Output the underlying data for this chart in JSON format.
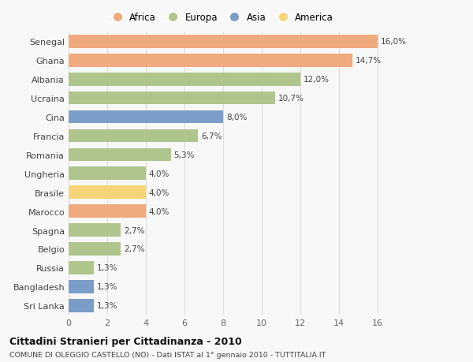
{
  "countries": [
    "Sri Lanka",
    "Bangladesh",
    "Russia",
    "Belgio",
    "Spagna",
    "Marocco",
    "Brasile",
    "Ungheria",
    "Romania",
    "Francia",
    "Cina",
    "Ucraina",
    "Albania",
    "Ghana",
    "Senegal"
  ],
  "values": [
    1.3,
    1.3,
    1.3,
    2.7,
    2.7,
    4.0,
    4.0,
    4.0,
    5.3,
    6.7,
    8.0,
    10.7,
    12.0,
    14.7,
    16.0
  ],
  "labels": [
    "1,3%",
    "1,3%",
    "1,3%",
    "2,7%",
    "2,7%",
    "4,0%",
    "4,0%",
    "4,0%",
    "5,3%",
    "6,7%",
    "8,0%",
    "10,7%",
    "12,0%",
    "14,7%",
    "16,0%"
  ],
  "colors": [
    "#7b9dc8",
    "#7b9dc8",
    "#b0c48e",
    "#b0c48e",
    "#b0c48e",
    "#f0aa80",
    "#f5d47a",
    "#b0c48e",
    "#b0c48e",
    "#b0c48e",
    "#7b9dc8",
    "#b0c48e",
    "#b0c48e",
    "#f0aa80",
    "#f0aa80"
  ],
  "legend_labels": [
    "Africa",
    "Europa",
    "Asia",
    "America"
  ],
  "legend_colors": [
    "#f0aa80",
    "#b0c48e",
    "#7b9dc8",
    "#f5d47a"
  ],
  "title": "Cittadini Stranieri per Cittadinanza - 2010",
  "subtitle": "COMUNE DI OLEGGIO CASTELLO (NO) - Dati ISTAT al 1° gennaio 2010 - TUTTITALIA.IT",
  "xlim": [
    0,
    17.5
  ],
  "xticks": [
    0,
    2,
    4,
    6,
    8,
    10,
    12,
    14,
    16
  ],
  "bg_color": "#f8f8f8",
  "grid_color": "#dddddd",
  "bar_height": 0.7
}
